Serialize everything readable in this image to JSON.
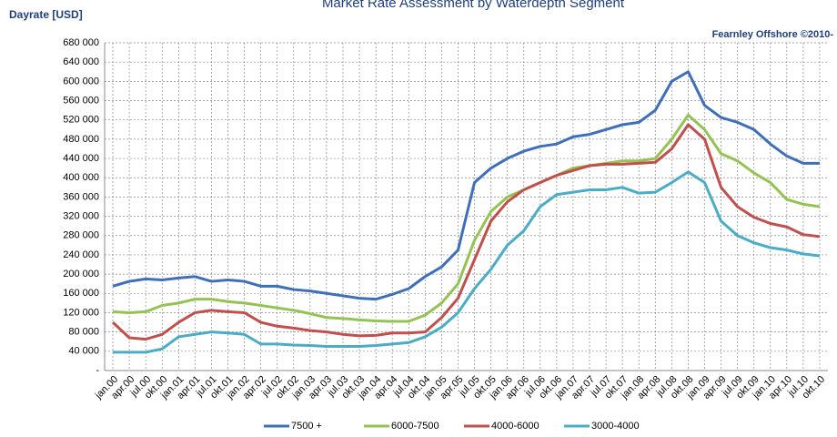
{
  "chart_data": {
    "type": "line",
    "title": "Market Rate Assessment by Waterdepth Segment",
    "y_label": "Dayrate [USD]",
    "annotation": "Fearnley Offshore ©2010-",
    "categories": [
      "jan.00",
      "apr.00",
      "jul.00",
      "okt.00",
      "jan.01",
      "apr.01",
      "jul.01",
      "okt.01",
      "jan.02",
      "apr.02",
      "jul.02",
      "okt.02",
      "jan.03",
      "apr.03",
      "jul.03",
      "okt.03",
      "jan.04",
      "apr.04",
      "jul.04",
      "okt.04",
      "jan.05",
      "apr.05",
      "jul.05",
      "okt.05",
      "jan.06",
      "apr.06",
      "jul.06",
      "okt.06",
      "jan.07",
      "apr.07",
      "jul.07",
      "okt.07",
      "jan.08",
      "apr.08",
      "jul.08",
      "okt.08",
      "jan.09",
      "apr.09",
      "jul.09",
      "okt.09",
      "jan.10",
      "apr.10",
      "jul.10",
      "okt.10"
    ],
    "series": [
      {
        "name": "7500 +",
        "color": "#3f6fb8",
        "values": [
          175000,
          185000,
          190000,
          188000,
          192000,
          195000,
          185000,
          188000,
          185000,
          175000,
          175000,
          168000,
          165000,
          160000,
          155000,
          150000,
          148000,
          158000,
          170000,
          195000,
          215000,
          250000,
          390000,
          420000,
          440000,
          455000,
          465000,
          470000,
          485000,
          490000,
          500000,
          510000,
          515000,
          540000,
          600000,
          620000,
          550000,
          525000,
          515000,
          500000,
          470000,
          445000,
          430000,
          430000
        ]
      },
      {
        "name": "6000-7500",
        "color": "#94c353",
        "values": [
          122000,
          120000,
          122000,
          135000,
          140000,
          148000,
          148000,
          143000,
          140000,
          135000,
          130000,
          125000,
          118000,
          110000,
          108000,
          105000,
          103000,
          102000,
          102000,
          115000,
          140000,
          180000,
          270000,
          330000,
          360000,
          375000,
          390000,
          405000,
          420000,
          425000,
          430000,
          435000,
          435000,
          440000,
          480000,
          530000,
          500000,
          450000,
          435000,
          410000,
          390000,
          355000,
          345000,
          340000
        ]
      },
      {
        "name": "4000-6000",
        "color": "#c0504d",
        "values": [
          100000,
          68000,
          65000,
          75000,
          100000,
          120000,
          125000,
          122000,
          120000,
          100000,
          92000,
          88000,
          83000,
          80000,
          75000,
          72000,
          73000,
          78000,
          78000,
          80000,
          110000,
          150000,
          230000,
          310000,
          350000,
          375000,
          390000,
          405000,
          415000,
          425000,
          428000,
          428000,
          430000,
          432000,
          460000,
          510000,
          480000,
          380000,
          340000,
          318000,
          305000,
          298000,
          282000,
          278000
        ]
      },
      {
        "name": "3000-4000",
        "color": "#4bacc6",
        "values": [
          38000,
          38000,
          38000,
          45000,
          70000,
          75000,
          80000,
          78000,
          75000,
          55000,
          55000,
          53000,
          52000,
          50000,
          50000,
          50000,
          52000,
          55000,
          58000,
          70000,
          90000,
          120000,
          170000,
          210000,
          260000,
          290000,
          340000,
          365000,
          370000,
          375000,
          375000,
          380000,
          368000,
          370000,
          390000,
          412000,
          390000,
          310000,
          280000,
          265000,
          255000,
          250000,
          242000,
          238000
        ]
      }
    ],
    "ylim": [
      0,
      680000
    ],
    "yticks": [
      {
        "value": 0,
        "label": "-"
      },
      {
        "value": 40000,
        "label": "40 000"
      },
      {
        "value": 80000,
        "label": "80 000"
      },
      {
        "value": 120000,
        "label": "120 000"
      },
      {
        "value": 160000,
        "label": "160 000"
      },
      {
        "value": 200000,
        "label": "200 000"
      },
      {
        "value": 240000,
        "label": "240 000"
      },
      {
        "value": 280000,
        "label": "280 000"
      },
      {
        "value": 320000,
        "label": "320 000"
      },
      {
        "value": 360000,
        "label": "360 000"
      },
      {
        "value": 400000,
        "label": "400 000"
      },
      {
        "value": 440000,
        "label": "440 000"
      },
      {
        "value": 480000,
        "label": "480 000"
      },
      {
        "value": 520000,
        "label": "520 000"
      },
      {
        "value": 560000,
        "label": "560 000"
      },
      {
        "value": 600000,
        "label": "600 000"
      },
      {
        "value": 640000,
        "label": "640 000"
      },
      {
        "value": 680000,
        "label": "680 000"
      }
    ],
    "grid": true,
    "legend": "bottom"
  }
}
